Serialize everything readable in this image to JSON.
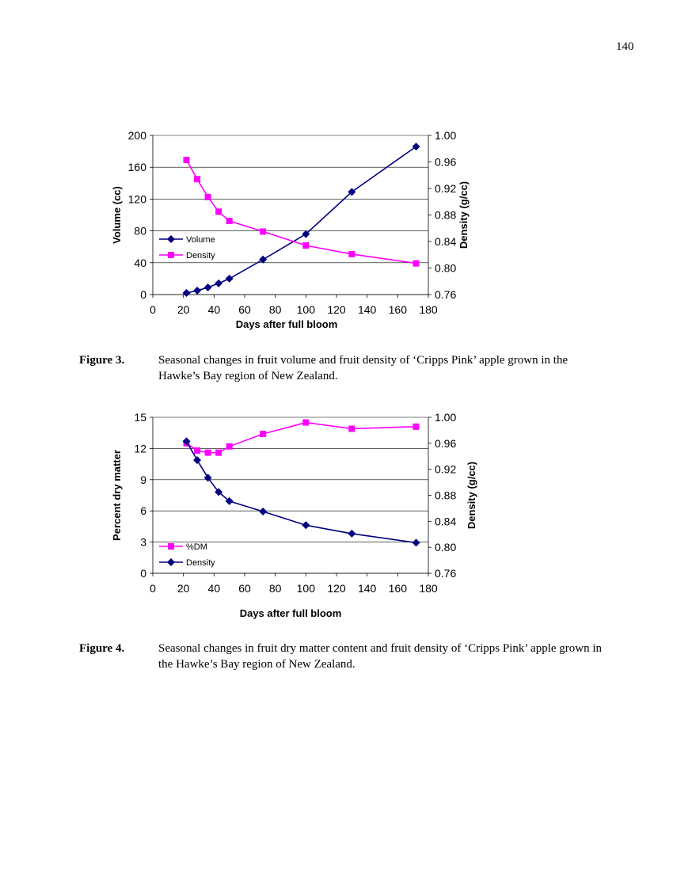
{
  "page_number": "140",
  "chart_data": [
    {
      "type": "line",
      "xlabel": "Days after full bloom",
      "ylabel": "Volume (cc)",
      "y2label": "Density (g/cc)",
      "xlim": [
        0,
        180
      ],
      "xticks": [
        0,
        20,
        40,
        60,
        80,
        100,
        120,
        140,
        160,
        180
      ],
      "ylim": [
        0,
        200
      ],
      "yticks": [
        0,
        40,
        80,
        120,
        160,
        200
      ],
      "y2lim": [
        0.76,
        1.0
      ],
      "y2ticks": [
        "0.76",
        "0.80",
        "0.84",
        "0.88",
        "0.92",
        "0.96",
        "1.00"
      ],
      "grid": "horizontal",
      "legend_position": "left-middle",
      "series": [
        {
          "name": "Volume",
          "axis": "left",
          "color": "#000080",
          "marker": "diamond",
          "x": [
            22,
            29,
            36,
            43,
            50,
            72,
            100,
            130,
            172
          ],
          "y": [
            2,
            5,
            9,
            14,
            20,
            44,
            76,
            129,
            186
          ]
        },
        {
          "name": "Density",
          "axis": "right",
          "color": "#ff00ff",
          "marker": "square",
          "x": [
            22,
            29,
            36,
            43,
            50,
            72,
            100,
            130,
            172
          ],
          "y": [
            0.963,
            0.934,
            0.907,
            0.885,
            0.871,
            0.855,
            0.834,
            0.821,
            0.807
          ]
        }
      ]
    },
    {
      "type": "line",
      "xlabel": "Days after full bloom",
      "ylabel": "Percent dry matter",
      "y2label": "Density (g/cc)",
      "xlim": [
        0,
        180
      ],
      "xticks": [
        0,
        20,
        40,
        60,
        80,
        100,
        120,
        140,
        160,
        180
      ],
      "ylim": [
        0,
        15
      ],
      "yticks": [
        0,
        3,
        6,
        9,
        12,
        15
      ],
      "y2lim": [
        0.76,
        1.0
      ],
      "y2ticks": [
        "0.76",
        "0.80",
        "0.84",
        "0.88",
        "0.92",
        "0.96",
        "1.00"
      ],
      "grid": "horizontal",
      "legend_position": "left-bottom",
      "series": [
        {
          "name": "%DM",
          "axis": "left",
          "color": "#ff00ff",
          "marker": "square",
          "x": [
            22,
            29,
            36,
            43,
            50,
            72,
            100,
            130,
            172
          ],
          "y": [
            12.5,
            11.8,
            11.6,
            11.6,
            12.2,
            13.4,
            14.5,
            13.9,
            14.1
          ]
        },
        {
          "name": "Density",
          "axis": "right",
          "color": "#000080",
          "marker": "diamond",
          "x": [
            22,
            29,
            36,
            43,
            50,
            72,
            100,
            130,
            172
          ],
          "y": [
            0.963,
            0.934,
            0.907,
            0.885,
            0.871,
            0.855,
            0.834,
            0.821,
            0.807
          ]
        }
      ]
    }
  ],
  "captions": [
    {
      "label": "Figure 3.",
      "text": "Seasonal changes in fruit volume and fruit density of ‘Cripps Pink’ apple grown in the Hawke’s Bay region of New Zealand."
    },
    {
      "label": "Figure 4.",
      "text": "Seasonal changes in fruit dry matter content and fruit density of ‘Cripps Pink’ apple grown in the Hawke’s Bay region of New Zealand."
    }
  ]
}
